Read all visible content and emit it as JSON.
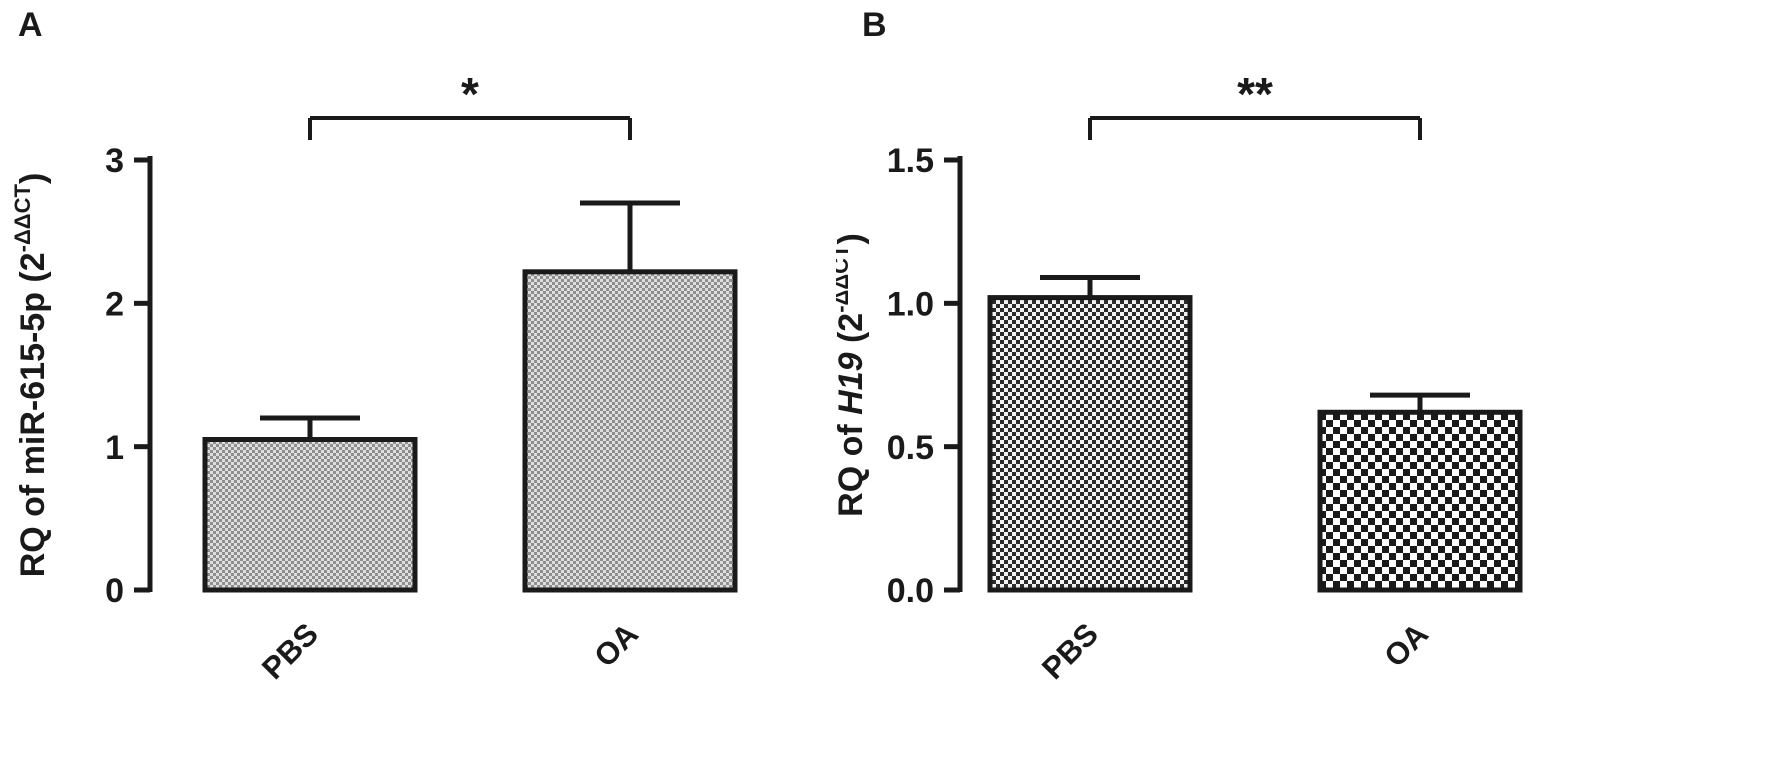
{
  "figure": {
    "type": "scientific-bar-figure",
    "background": "#ffffff"
  },
  "style": {
    "ink": "#1a1a1a",
    "pattern_gray_bg": "#dedede",
    "pattern_gray_fg": "#8f8f8f",
    "pattern_dark_bg": "#f2f2f2",
    "pattern_dark_fg": "#2b2b2b",
    "pattern_coarse_bg": "#ffffff",
    "pattern_coarse_fg": "#1a1a1a"
  },
  "chart_data": [
    {
      "type": "bar",
      "panel_label": "A",
      "title": "",
      "xlabel": "",
      "ylabel": "RQ of miR-615-5p (2^-ΔΔCT)",
      "ylabel_parts": [
        {
          "text": "RQ of miR-615-5p (2"
        },
        {
          "text": "-ΔΔCT",
          "sup": true
        },
        {
          "text": ")"
        }
      ],
      "categories": [
        "PBS",
        "OA"
      ],
      "values": [
        1.05,
        2.22
      ],
      "errors_upper": [
        0.15,
        0.48
      ],
      "ylim": [
        0,
        3
      ],
      "ytick_values": [
        0,
        1,
        2,
        3
      ],
      "ytick_labels": [
        "0",
        "1",
        "2",
        "3"
      ],
      "significance": "*",
      "bar_patterns": [
        "fine-gray",
        "fine-gray"
      ],
      "grid": false,
      "legend": "none"
    },
    {
      "type": "bar",
      "panel_label": "B",
      "title": "",
      "xlabel": "",
      "ylabel": "RQ of H19 (2^-ΔΔCT)",
      "ylabel_parts": [
        {
          "text": "RQ of "
        },
        {
          "text": "H19",
          "italic": true
        },
        {
          "text": " (2"
        },
        {
          "text": "-ΔΔCT",
          "sup": true
        },
        {
          "text": ")"
        }
      ],
      "categories": [
        "PBS",
        "OA"
      ],
      "values": [
        1.02,
        0.62
      ],
      "errors_upper": [
        0.07,
        0.06
      ],
      "ylim": [
        0,
        1.5
      ],
      "ytick_values": [
        0,
        0.5,
        1,
        1.5
      ],
      "ytick_labels": [
        "0.0",
        "0.5",
        "1.0",
        "1.5"
      ],
      "significance": "**",
      "bar_patterns": [
        "fine-dark",
        "coarse"
      ],
      "grid": false,
      "legend": "none"
    }
  ]
}
